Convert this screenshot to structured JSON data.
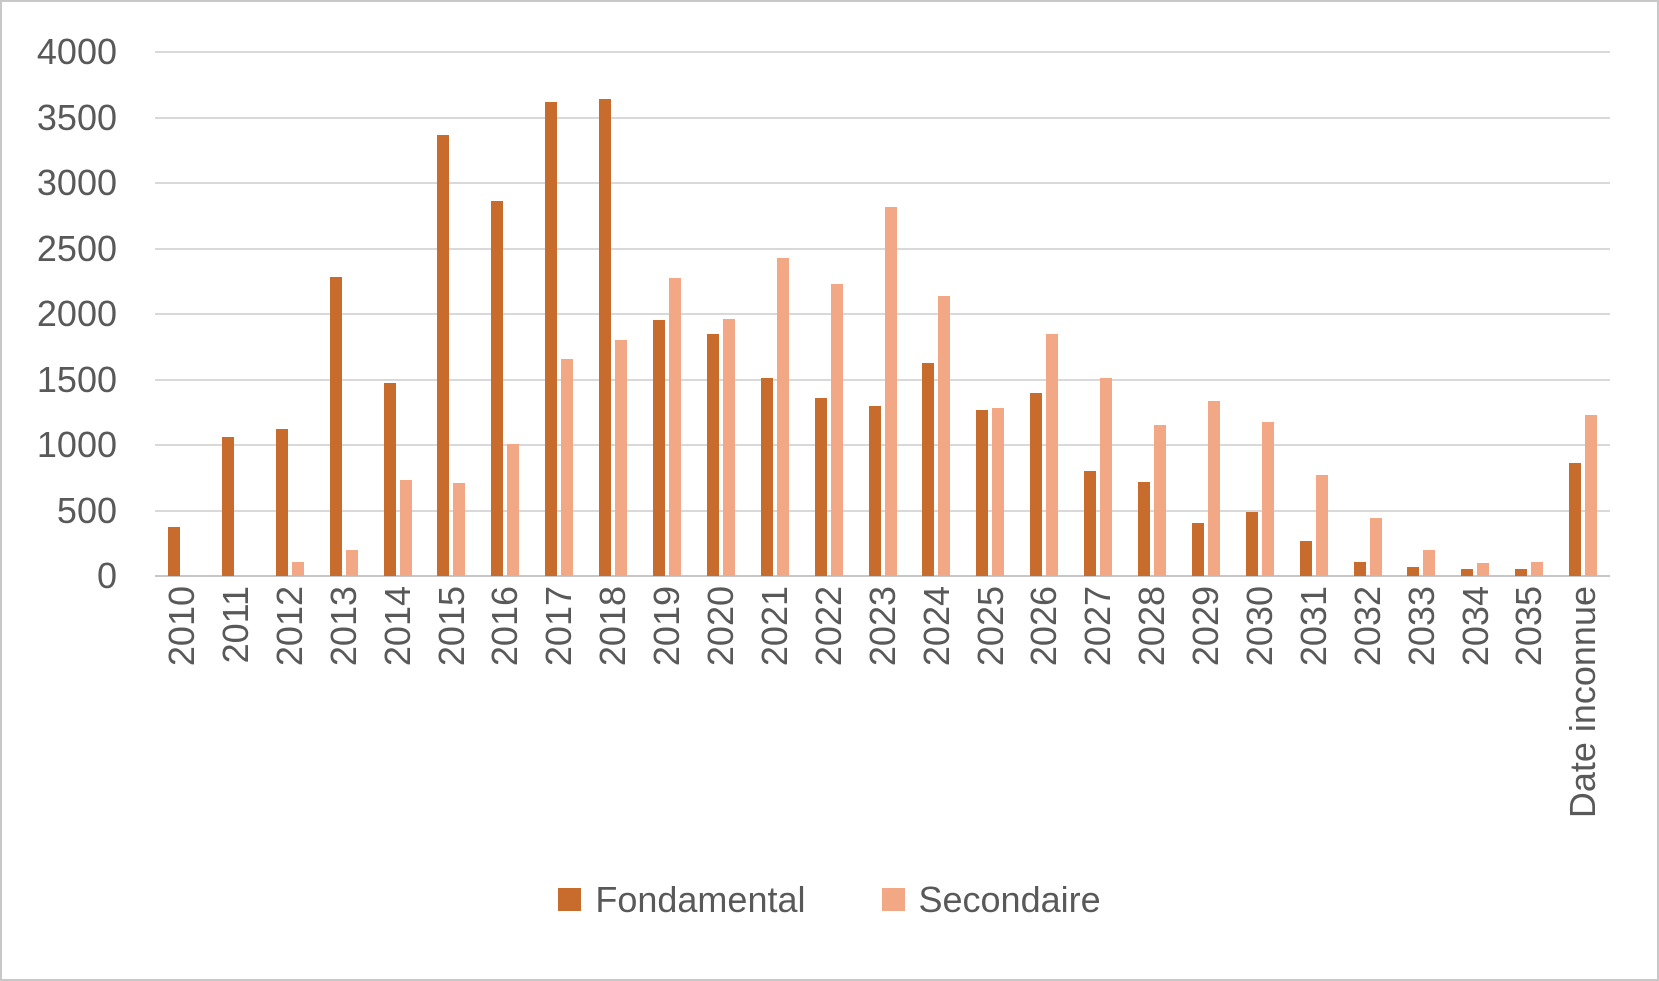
{
  "chart_data": {
    "type": "bar",
    "title": "",
    "xlabel": "",
    "ylabel": "",
    "categories": [
      "2010",
      "2011",
      "2012",
      "2013",
      "2014",
      "2015",
      "2016",
      "2017",
      "2018",
      "2019",
      "2020",
      "2021",
      "2022",
      "2023",
      "2024",
      "2025",
      "2026",
      "2027",
      "2028",
      "2029",
      "2030",
      "2031",
      "2032",
      "2033",
      "2034",
      "2035",
      "Date inconnue"
    ],
    "series": [
      {
        "name": "Fondamental",
        "color": "#C86C2D",
        "values": [
          375,
          1060,
          1120,
          2280,
          1475,
          3370,
          2860,
          3620,
          3645,
          1955,
          1850,
          1515,
          1360,
          1295,
          1625,
          1270,
          1395,
          805,
          715,
          405,
          490,
          265,
          110,
          70,
          50,
          50,
          865
        ]
      },
      {
        "name": "Secondaire",
        "color": "#F2A885",
        "values": [
          0,
          0,
          105,
          200,
          730,
          710,
          1010,
          1655,
          1805,
          2275,
          1960,
          2430,
          2230,
          2815,
          2135,
          1280,
          1850,
          1515,
          1150,
          1335,
          1175,
          770,
          440,
          200,
          100,
          105,
          1230
        ]
      }
    ],
    "ylim": [
      0,
      4000
    ],
    "yticks": [
      0,
      500,
      1000,
      1500,
      2000,
      2500,
      3000,
      3500,
      4000
    ],
    "grid": "horizontal",
    "legend_position": "bottom"
  },
  "legend": {
    "items": [
      {
        "label": "Fondamental",
        "color": "#C86C2D"
      },
      {
        "label": "Secondaire",
        "color": "#F2A885"
      }
    ]
  },
  "colors": {
    "axis_text": "#595959",
    "gridline": "#D9D9D9",
    "axis_line": "#C6C6C6",
    "border": "#C8C8C8",
    "background": "#FFFFFF"
  }
}
